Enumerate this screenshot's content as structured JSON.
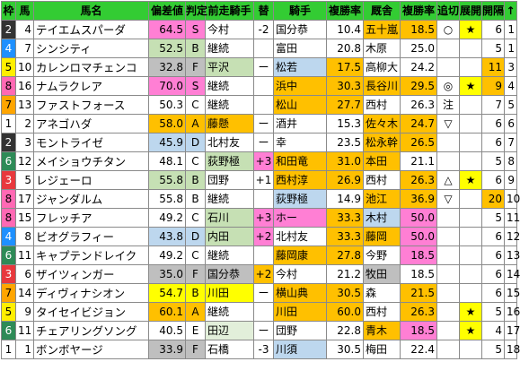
{
  "headers": [
    "枠",
    "馬",
    "馬名",
    "偏差値",
    "判定",
    "前走騎手",
    "替",
    "騎手",
    "複勝率",
    "厩舎",
    "複勝率",
    "追切",
    "展開",
    "開隔",
    "↑"
  ],
  "rows": [
    {
      "waku": "2",
      "umaban": "4",
      "name": "テイエムスパーダ",
      "hensachi": "64.5",
      "hantei": "S",
      "prev_jockey": "今村",
      "kae": "-2",
      "jockey": "国分恭",
      "rate1": "10.4",
      "stable": "五十嵐",
      "rate2": "18.5",
      "oikiri": "○",
      "tenkai": "★",
      "kankaku": "6",
      "last": "1"
    },
    {
      "waku": "4",
      "umaban": "7",
      "name": "シンシティ",
      "hensachi": "52.5",
      "hantei": "B",
      "prev_jockey": "継続",
      "kae": "",
      "jockey": "富田",
      "rate1": "20.8",
      "stable": "木原",
      "rate2": "25.0",
      "oikiri": "",
      "tenkai": "",
      "kankaku": "5",
      "last": "1"
    },
    {
      "waku": "5",
      "umaban": "10",
      "name": "カレンロマチェンコ",
      "hensachi": "32.8",
      "hantei": "F",
      "prev_jockey": "平沢",
      "kae": "ー",
      "jockey": "松若",
      "rate1": "17.5",
      "stable": "高柳大",
      "rate2": "24.2",
      "oikiri": "",
      "tenkai": "",
      "kankaku": "11",
      "last": "3"
    },
    {
      "waku": "8",
      "umaban": "16",
      "name": "ナムラクレア",
      "hensachi": "70.0",
      "hantei": "S",
      "prev_jockey": "継続",
      "kae": "",
      "jockey": "浜中",
      "rate1": "30.3",
      "stable": "長谷川",
      "rate2": "29.5",
      "oikiri": "◎",
      "tenkai": "★",
      "kankaku": "9",
      "last": "4"
    },
    {
      "waku": "7",
      "umaban": "13",
      "name": "ファストフォース",
      "hensachi": "50.3",
      "hantei": "C",
      "prev_jockey": "継続",
      "kae": "",
      "jockey": "松山",
      "rate1": "27.7",
      "stable": "西村",
      "rate2": "26.3",
      "oikiri": "注",
      "tenkai": "",
      "kankaku": "7",
      "last": "5"
    },
    {
      "waku": "1",
      "umaban": "2",
      "name": "アネゴハダ",
      "hensachi": "58.0",
      "hantei": "A",
      "prev_jockey": "藤懸",
      "kae": "ー",
      "jockey": "酒井",
      "rate1": "15.3",
      "stable": "佐々木",
      "rate2": "24.7",
      "oikiri": "▽",
      "tenkai": "",
      "kankaku": "6",
      "last": "6"
    },
    {
      "waku": "2",
      "umaban": "3",
      "name": "モントライゼ",
      "hensachi": "45.9",
      "hantei": "D",
      "prev_jockey": "北村友",
      "kae": "ー",
      "jockey": "幸",
      "rate1": "23.5",
      "stable": "松永幹",
      "rate2": "26.5",
      "oikiri": "",
      "tenkai": "",
      "kankaku": "6",
      "last": "7"
    },
    {
      "waku": "6",
      "umaban": "12",
      "name": "メイショウチタン",
      "hensachi": "48.1",
      "hantei": "C",
      "prev_jockey": "荻野極",
      "kae": "+3",
      "jockey": "和田竜",
      "rate1": "31.0",
      "stable": "本田",
      "rate2": "21.1",
      "oikiri": "",
      "tenkai": "",
      "kankaku": "5",
      "last": "8"
    },
    {
      "waku": "3",
      "umaban": "5",
      "name": "レジェーロ",
      "hensachi": "55.8",
      "hantei": "B",
      "prev_jockey": "団野",
      "kae": "+1",
      "jockey": "西村淳",
      "rate1": "26.9",
      "stable": "西村",
      "rate2": "26.3",
      "oikiri": "△",
      "tenkai": "★",
      "kankaku": "6",
      "last": "9"
    },
    {
      "waku": "8",
      "umaban": "17",
      "name": "ジャンダルム",
      "hensachi": "55.8",
      "hantei": "B",
      "prev_jockey": "継続",
      "kae": "",
      "jockey": "荻野極",
      "rate1": "14.9",
      "stable": "池江",
      "rate2": "36.9",
      "oikiri": "▽",
      "tenkai": "",
      "kankaku": "20",
      "last": "10"
    },
    {
      "waku": "8",
      "umaban": "15",
      "name": "フレッチア",
      "hensachi": "49.2",
      "hantei": "C",
      "prev_jockey": "石川",
      "kae": "+3",
      "jockey": "ホー",
      "rate1": "33.3",
      "stable": "木村",
      "rate2": "50.0",
      "oikiri": "",
      "tenkai": "",
      "kankaku": "5",
      "last": "11"
    },
    {
      "waku": "4",
      "umaban": "8",
      "name": "ビオグラフィー",
      "hensachi": "43.8",
      "hantei": "D",
      "prev_jockey": "内田",
      "kae": "+2",
      "jockey": "北村友",
      "rate1": "33.3",
      "stable": "藤岡",
      "rate2": "50.0",
      "oikiri": "",
      "tenkai": "",
      "kankaku": "6",
      "last": "12"
    },
    {
      "waku": "6",
      "umaban": "11",
      "name": "キャプテンドレイク",
      "hensachi": "49.2",
      "hantei": "C",
      "prev_jockey": "継続",
      "kae": "",
      "jockey": "藤岡康",
      "rate1": "27.8",
      "stable": "今野",
      "rate2": "18.5",
      "oikiri": "",
      "tenkai": "",
      "kankaku": "6",
      "last": "13"
    },
    {
      "waku": "3",
      "umaban": "6",
      "name": "ザイツィンガー",
      "hensachi": "35.0",
      "hantei": "F",
      "prev_jockey": "国分恭",
      "kae": "+2",
      "jockey": "今村",
      "rate1": "21.2",
      "stable": "牧田",
      "rate2": "18.5",
      "oikiri": "",
      "tenkai": "",
      "kankaku": "6",
      "last": "14"
    },
    {
      "waku": "7",
      "umaban": "14",
      "name": "ディヴィナシオン",
      "hensachi": "54.7",
      "hantei": "B",
      "prev_jockey": "川田",
      "kae": "ー",
      "jockey": "横山典",
      "rate1": "30.5",
      "stable": "森",
      "rate2": "21.5",
      "oikiri": "",
      "tenkai": "",
      "kankaku": "6",
      "last": "15"
    },
    {
      "waku": "5",
      "umaban": "9",
      "name": "タイセイビジョン",
      "hensachi": "60.1",
      "hantei": "A",
      "prev_jockey": "継続",
      "kae": "",
      "jockey": "川田",
      "rate1": "60.0",
      "stable": "西村",
      "rate2": "26.3",
      "oikiri": "",
      "tenkai": "★",
      "kankaku": "5",
      "last": "16"
    },
    {
      "waku": "6",
      "umaban": "11",
      "name": "チェアリングソング",
      "hensachi": "40.5",
      "hantei": "E",
      "prev_jockey": "田辺",
      "kae": "ー",
      "jockey": "団野",
      "rate1": "22.8",
      "stable": "青木",
      "rate2": "18.5",
      "oikiri": "",
      "tenkai": "★",
      "kankaku": "4",
      "last": "17"
    },
    {
      "waku": "1",
      "umaban": "1",
      "name": "ボンボヤージ",
      "hensachi": "33.9",
      "hantei": "F",
      "prev_jockey": "石橋",
      "kae": "-3",
      "jockey": "川須",
      "rate1": "30.5",
      "stable": "梅田",
      "rate2": "22.4",
      "oikiri": "",
      "tenkai": "",
      "kankaku": "5",
      "last": "18"
    }
  ],
  "styles": {
    "hensachi": [
      "pink",
      "green",
      "gray",
      "pink",
      "",
      "orange",
      "blue",
      "",
      "green",
      "",
      "",
      "blue",
      "",
      "gray",
      "yellow",
      "orange",
      "",
      "gray"
    ],
    "prev_jockey": [
      "",
      "",
      "green",
      "",
      "",
      "orange",
      "",
      "green",
      "",
      "",
      "green",
      "green",
      "",
      "gray",
      "yellow",
      "",
      "lightgreen",
      ""
    ],
    "kae": [
      "",
      "",
      "",
      "",
      "",
      "",
      "",
      "pink",
      "",
      "",
      "pink",
      "pink",
      "",
      "orange",
      "",
      "",
      "",
      ""
    ],
    "jockey": [
      "",
      "",
      "blue",
      "orange",
      "orange",
      "",
      "",
      "orange",
      "orange",
      "blue",
      "pink",
      "",
      "orange",
      "",
      "orange",
      "orange",
      "",
      "blue"
    ],
    "rate1": [
      "",
      "",
      "orange",
      "orange",
      "orange",
      "",
      "",
      "orange",
      "orange",
      "",
      "orange",
      "orange",
      "orange",
      "",
      "orange",
      "orange",
      "",
      ""
    ],
    "stable": [
      "orange",
      "",
      "",
      "orange",
      "",
      "orange",
      "orange",
      "orange",
      "",
      "orange",
      "blue",
      "orange",
      "",
      "gray",
      "",
      "",
      "orange",
      ""
    ],
    "rate2": [
      "orange",
      "",
      "",
      "orange",
      "",
      "orange",
      "orange",
      "",
      "orange",
      "orange",
      "pink",
      "pink",
      "pink",
      "",
      "orange",
      "orange",
      "pink",
      ""
    ],
    "kankaku": [
      "",
      "",
      "orange",
      "orange",
      "",
      "",
      "",
      "",
      "",
      "orange",
      "",
      "",
      "",
      "",
      "",
      "",
      "",
      ""
    ]
  },
  "colors": {
    "header": "#33cc33"
  }
}
